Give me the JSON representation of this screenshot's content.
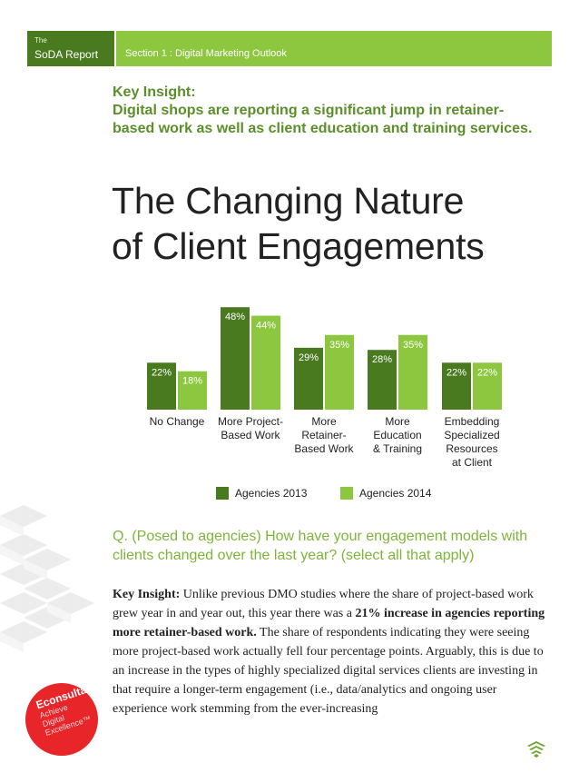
{
  "header": {
    "the_label": "The",
    "report_name": "SoDA Report",
    "section": "Section 1 : Digital Marketing Outlook"
  },
  "key_insight_top": {
    "heading": "Key Insight:",
    "text": "Digital shops are reporting a significant jump in retainer-based work as well as client education and training services."
  },
  "title": {
    "line1": "The Changing Nature",
    "line2": "of Client Engagements"
  },
  "colors": {
    "agencies_2013": "#4a7a1f",
    "agencies_2014": "#8dc63f",
    "header_green": "#8dc63f",
    "accent_text": "#5a8f29",
    "stamp_red": "#e8262a"
  },
  "chart_data": {
    "type": "bar",
    "categories": [
      [
        "No Change"
      ],
      [
        "More Project-",
        "Based Work"
      ],
      [
        "More",
        "Retainer-",
        "Based Work"
      ],
      [
        "More",
        "Education",
        "& Training"
      ],
      [
        "Embedding",
        "Specialized",
        "Resources",
        "at Client"
      ]
    ],
    "series": [
      {
        "name": "Agencies 2013",
        "values": [
          22,
          48,
          29,
          28,
          22
        ],
        "labels": [
          "22%",
          "48%",
          "29%",
          "28%",
          "22%"
        ]
      },
      {
        "name": "Agencies 2014",
        "values": [
          18,
          44,
          35,
          35,
          22
        ],
        "labels": [
          "18%",
          "44%",
          "35%",
          "35%",
          "22%"
        ]
      }
    ],
    "unit": "%",
    "ylim": [
      0,
      48
    ],
    "grid": false,
    "legend_position": "bottom"
  },
  "question": "Q. (Posed to agencies) How have your engagement models with clients changed over the last year?  (select all that apply)",
  "body": {
    "lead": "Key Insight:",
    "text1": " Unlike previous DMO studies where the share of project-based work grew year in and year out, this year there was a ",
    "bold": "21% increase in agencies reporting more retainer-based work.",
    "text2": "  The share of respondents indicating they were seeing more project-based work actually fell four percentage points. Arguably, this is due to an increase in the types of highly specialized digital services clients are investing in that require a longer-term engagement (i.e., data/analytics and ongoing user experience work stemming from the ever-increasing"
  },
  "stamp": {
    "brand": "Econsultancy",
    "tagline": [
      "Achieve",
      "Digital",
      "Excellence™"
    ]
  }
}
